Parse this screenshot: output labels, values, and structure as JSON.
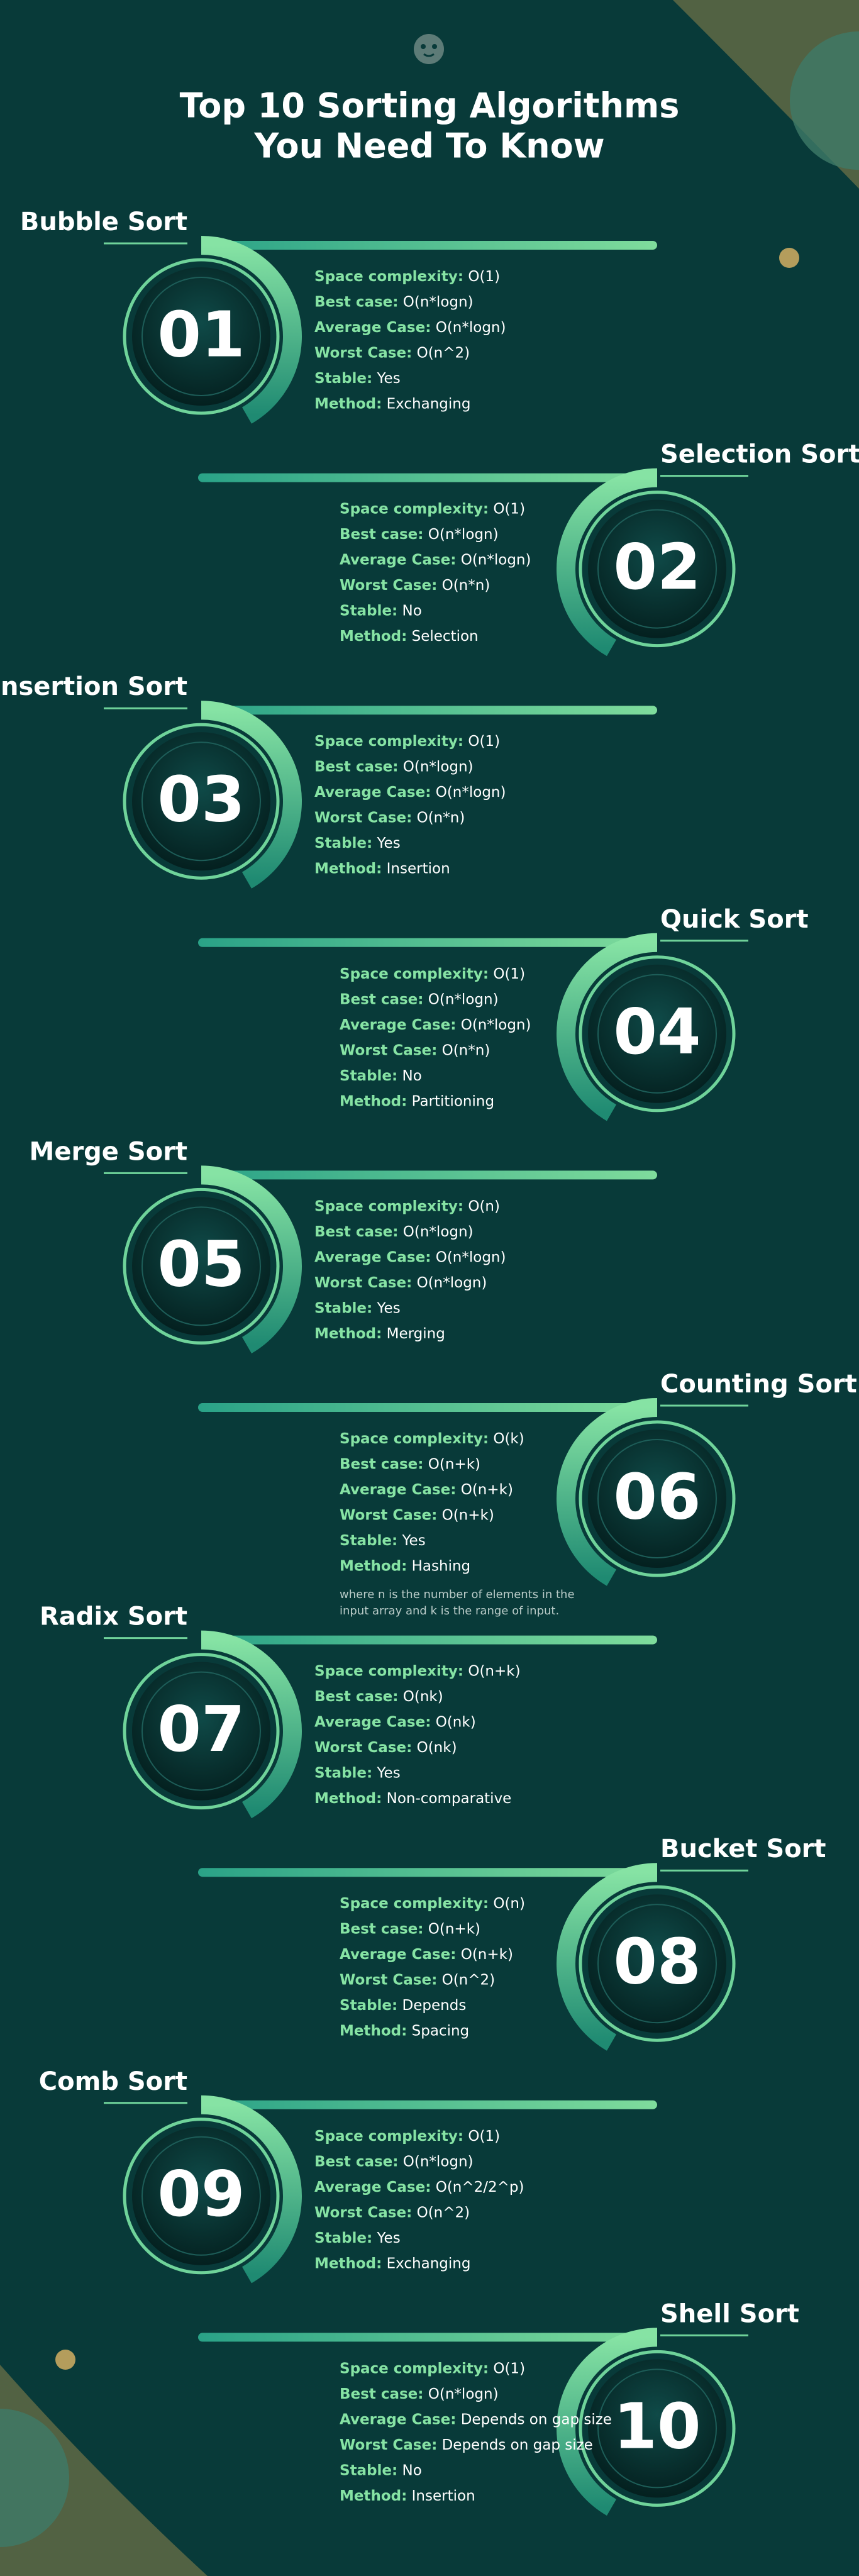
{
  "header": {
    "title_lines": [
      "Top 10 Sorting Algorithms",
      "You Need To Know"
    ]
  },
  "items": [
    {
      "number": "01",
      "name": "Bubble Sort",
      "rows": [
        {
          "label": "Space complexity:",
          "value": "O(1)"
        },
        {
          "label": "Best case:",
          "value": "O(n*logn)"
        },
        {
          "label": "Average Case:",
          "value": "O(n*logn)"
        },
        {
          "label": "Worst Case:",
          "value": "O(n^2)"
        },
        {
          "label": "Stable:",
          "value": "Yes"
        },
        {
          "label": "Method:",
          "value": "Exchanging"
        }
      ]
    },
    {
      "number": "02",
      "name": "Selection Sort",
      "rows": [
        {
          "label": "Space complexity:",
          "value": "O(1)"
        },
        {
          "label": "Best case:",
          "value": "O(n*logn)"
        },
        {
          "label": "Average Case:",
          "value": "O(n*logn)"
        },
        {
          "label": "Worst Case:",
          "value": "O(n*n)"
        },
        {
          "label": "Stable:",
          "value": "No"
        },
        {
          "label": "Method:",
          "value": "Selection"
        }
      ]
    },
    {
      "number": "03",
      "name": "Insertion Sort",
      "rows": [
        {
          "label": "Space complexity:",
          "value": "O(1)"
        },
        {
          "label": "Best case:",
          "value": "O(n*logn)"
        },
        {
          "label": "Average Case:",
          "value": "O(n*logn)"
        },
        {
          "label": "Worst Case:",
          "value": "O(n*n)"
        },
        {
          "label": "Stable:",
          "value": "Yes"
        },
        {
          "label": "Method:",
          "value": "Insertion"
        }
      ]
    },
    {
      "number": "04",
      "name": "Quick Sort",
      "rows": [
        {
          "label": "Space complexity:",
          "value": "O(1)"
        },
        {
          "label": "Best case:",
          "value": "O(n*logn)"
        },
        {
          "label": "Average Case:",
          "value": "O(n*logn)"
        },
        {
          "label": "Worst Case:",
          "value": "O(n*n)"
        },
        {
          "label": "Stable:",
          "value": "No"
        },
        {
          "label": "Method:",
          "value": "Partitioning"
        }
      ]
    },
    {
      "number": "05",
      "name": "Merge Sort",
      "rows": [
        {
          "label": "Space complexity:",
          "value": "O(n)"
        },
        {
          "label": "Best case:",
          "value": "O(n*logn)"
        },
        {
          "label": "Average Case:",
          "value": "O(n*logn)"
        },
        {
          "label": "Worst Case:",
          "value": "O(n*logn)"
        },
        {
          "label": "Stable:",
          "value": "Yes"
        },
        {
          "label": "Method:",
          "value": "Merging"
        }
      ]
    },
    {
      "number": "06",
      "name": "Counting Sort",
      "rows": [
        {
          "label": "Space complexity:",
          "value": "O(k)"
        },
        {
          "label": "Best case:",
          "value": "O(n+k)"
        },
        {
          "label": "Average Case:",
          "value": "O(n+k)"
        },
        {
          "label": "Worst Case:",
          "value": "O(n+k)"
        },
        {
          "label": "Stable:",
          "value": "Yes"
        },
        {
          "label": "Method:",
          "value": "Hashing"
        }
      ],
      "note_lines": [
        "where n is the number of elements in the",
        "input array and k is the range of input."
      ]
    },
    {
      "number": "07",
      "name": "Radix Sort",
      "rows": [
        {
          "label": "Space complexity:",
          "value": "O(n+k)"
        },
        {
          "label": "Best case:",
          "value": "O(nk)"
        },
        {
          "label": "Average Case:",
          "value": "O(nk)"
        },
        {
          "label": "Worst Case:",
          "value": "O(nk)"
        },
        {
          "label": "Stable:",
          "value": "Yes"
        },
        {
          "label": "Method:",
          "value": "Non-comparative"
        }
      ]
    },
    {
      "number": "08",
      "name": "Bucket Sort",
      "rows": [
        {
          "label": "Space complexity:",
          "value": "O(n)"
        },
        {
          "label": "Best case:",
          "value": "O(n+k)"
        },
        {
          "label": "Average Case:",
          "value": "O(n+k)"
        },
        {
          "label": "Worst Case:",
          "value": "O(n^2)"
        },
        {
          "label": "Stable:",
          "value": "Depends"
        },
        {
          "label": "Method:",
          "value": "Spacing"
        }
      ]
    },
    {
      "number": "09",
      "name": "Comb Sort",
      "rows": [
        {
          "label": "Space complexity:",
          "value": "O(1)"
        },
        {
          "label": "Best case:",
          "value": "O(n*logn)"
        },
        {
          "label": "Average Case:",
          "value": "O(n^2/2^p)"
        },
        {
          "label": "Worst Case:",
          "value": "O(n^2)"
        },
        {
          "label": "Stable:",
          "value": "Yes"
        },
        {
          "label": "Method:",
          "value": "Exchanging"
        }
      ]
    },
    {
      "number": "10",
      "name": "Shell Sort",
      "rows": [
        {
          "label": "Space complexity:",
          "value": "O(1)"
        },
        {
          "label": "Best case:",
          "value": "O(n*logn)"
        },
        {
          "label": "Average Case:",
          "value": "Depends on gap size"
        },
        {
          "label": "Worst Case:",
          "value": "Depends on gap size"
        },
        {
          "label": "Stable:",
          "value": "No"
        },
        {
          "label": "Method:",
          "value": "Insertion"
        }
      ]
    }
  ]
}
